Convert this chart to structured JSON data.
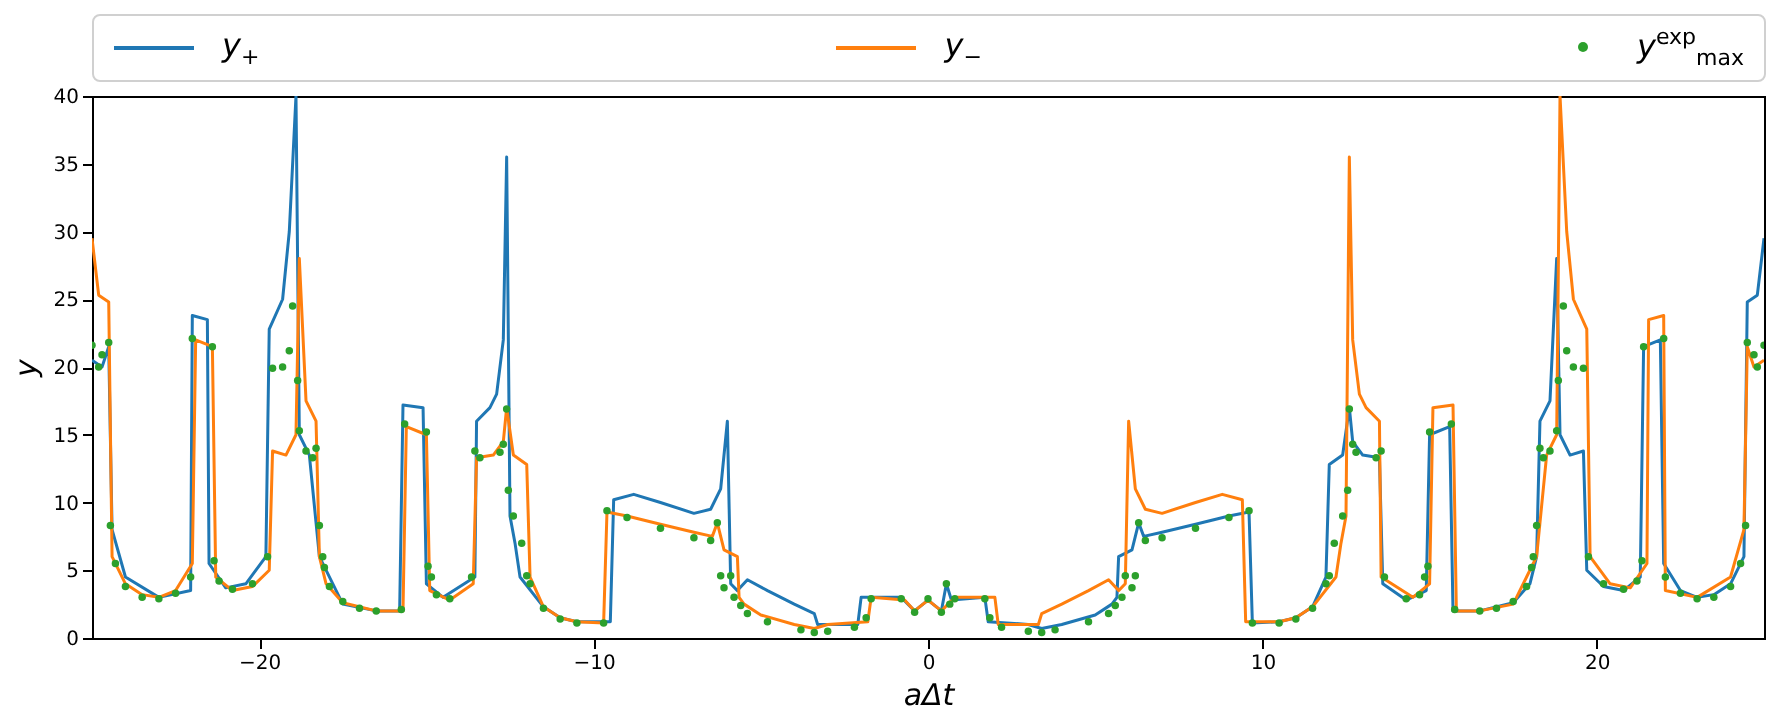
{
  "chart_data": {
    "type": "line",
    "xlabel": "aΔt",
    "ylabel": "y",
    "xlim": [
      -25,
      25
    ],
    "ylim": [
      0,
      40
    ],
    "xticks": [
      {
        "value": -20,
        "label": "−20"
      },
      {
        "value": -10,
        "label": "−10"
      },
      0,
      10,
      20
    ],
    "yticks": [
      0,
      5,
      10,
      15,
      20,
      25,
      30,
      35,
      40
    ],
    "grid": false,
    "legend": "top",
    "series": [
      {
        "name": "y$_{+}$",
        "type": "line",
        "color": "#1f77b4",
        "x": [
          -25,
          -24.7,
          -24.5,
          -24.4,
          -24,
          -23,
          -22.05,
          -22.0,
          -21.55,
          -21.5,
          -21,
          -20.4,
          -19.8,
          -19.7,
          -19.3,
          -19.1,
          -18.9,
          -18.8,
          -18.5,
          -18.2,
          -17.5,
          -16.5,
          -15.8,
          -15.7,
          -15.1,
          -15.0,
          -14.5,
          -13.55,
          -13.5,
          -13.1,
          -12.9,
          -12.7,
          -12.6,
          -12.5,
          -12.35,
          -12.2,
          -11.5,
          -11,
          -10.5,
          -9.5,
          -9.4,
          -8.8,
          -8,
          -7,
          -6.5,
          -6.2,
          -6.0,
          -5.9,
          -5.7,
          -5.4,
          -4.8,
          -4,
          -3.4,
          -3.3,
          -2.1,
          -2.0,
          -0.8,
          -0.4,
          0,
          0.4,
          0.55,
          0.7,
          1.7,
          1.8,
          3.0,
          3.4,
          4,
          5,
          5.5,
          5.65,
          5.7,
          6.1,
          6.3,
          6.45,
          7,
          8,
          9,
          9.6,
          9.7,
          10.5,
          11,
          11.5,
          11.9,
          12.0,
          12.4,
          12.6,
          12.7,
          13.0,
          13.5,
          13.6,
          14.3,
          14.9,
          15.0,
          15.6,
          15.7,
          16.5,
          17.5,
          18.0,
          18.2,
          18.3,
          18.6,
          18.8,
          18.9,
          19.2,
          19.6,
          19.7,
          20.2,
          20.8,
          21.3,
          21.4,
          21.9,
          22.0,
          22.5,
          23,
          23.5,
          24,
          24.4,
          24.5,
          24.8,
          25
        ],
        "values": [
          20.5,
          20.0,
          21.5,
          8,
          4.5,
          3.0,
          3.5,
          23.8,
          23.5,
          5.5,
          3.7,
          4,
          6,
          22.8,
          25,
          30,
          40,
          15,
          13.5,
          6.0,
          2.5,
          2.0,
          2.0,
          17.2,
          17.0,
          4.0,
          3.0,
          4.5,
          16,
          17,
          18,
          22,
          35.5,
          9,
          7,
          4.5,
          2.3,
          1.5,
          1.2,
          1.2,
          10.2,
          10.6,
          10.0,
          9.2,
          9.5,
          11,
          16,
          4.0,
          3.5,
          4.3,
          3.5,
          2.5,
          1.8,
          1.0,
          1.0,
          3.0,
          3.0,
          2.0,
          2.8,
          2.0,
          4.0,
          2.8,
          3.0,
          1.2,
          1.0,
          0.7,
          1.0,
          1.7,
          2.5,
          3.0,
          6.0,
          6.5,
          8.5,
          7.5,
          7.8,
          8.4,
          9.0,
          9.3,
          1.1,
          1.2,
          1.5,
          2.3,
          4.5,
          12.8,
          13.5,
          17,
          14.5,
          13.5,
          13.3,
          4.0,
          2.8,
          3.5,
          15.0,
          15.6,
          2.0,
          2.0,
          2.6,
          4.0,
          6.0,
          16,
          17.5,
          28,
          15,
          13.5,
          13.8,
          5,
          3.8,
          3.5,
          4.5,
          21.5,
          22.0,
          5.5,
          3.5,
          3.0,
          3.2,
          4.0,
          6.0,
          24.8,
          25.3,
          29.5
        ]
      },
      {
        "name": "y$_{−}$",
        "type": "line",
        "color": "#ff7f0e",
        "x": [
          -25,
          -24.8,
          -24.5,
          -24.4,
          -24,
          -23.5,
          -23,
          -22.5,
          -22.0,
          -21.9,
          -21.4,
          -21.3,
          -20.8,
          -20.2,
          -19.7,
          -19.6,
          -19.2,
          -18.9,
          -18.8,
          -18.6,
          -18.3,
          -18.2,
          -18.0,
          -17.5,
          -16.5,
          -15.7,
          -15.6,
          -15.0,
          -14.9,
          -14.3,
          -13.6,
          -13.5,
          -13.0,
          -12.7,
          -12.6,
          -12.4,
          -12.0,
          -11.9,
          -11.5,
          -11,
          -10.5,
          -9.7,
          -9.6,
          -9,
          -8,
          -7,
          -6.45,
          -6.3,
          -6.1,
          -5.7,
          -5.65,
          -5.5,
          -5,
          -4,
          -3.4,
          -3.0,
          -1.8,
          -1.7,
          -0.7,
          -0.4,
          0,
          0.4,
          0.8,
          2.0,
          2.1,
          3.3,
          3.4,
          4,
          4.8,
          5.4,
          5.7,
          5.9,
          6.0,
          6.2,
          6.5,
          7,
          8,
          8.8,
          9.4,
          9.5,
          10.5,
          11,
          11.5,
          12.2,
          12.35,
          12.5,
          12.6,
          12.7,
          12.9,
          13.1,
          13.5,
          13.55,
          14.5,
          15.0,
          15.1,
          15.7,
          15.8,
          16.5,
          17.5,
          18.2,
          18.5,
          18.8,
          18.9,
          19.1,
          19.3,
          19.7,
          19.8,
          20.4,
          21,
          21.5,
          21.55,
          22.0,
          22.05,
          23,
          24,
          24.4,
          24.5,
          24.7,
          25
        ],
        "values": [
          29.5,
          25.3,
          24.8,
          6.0,
          4.0,
          3.2,
          3.0,
          3.5,
          5.5,
          22.0,
          21.5,
          4.5,
          3.5,
          3.8,
          5,
          13.8,
          13.5,
          15,
          28,
          17.5,
          16,
          6.0,
          4.0,
          2.6,
          2.0,
          2.0,
          15.6,
          15.0,
          3.5,
          2.8,
          4.0,
          13.3,
          13.5,
          14.5,
          17,
          13.5,
          12.8,
          4.5,
          2.3,
          1.5,
          1.2,
          1.1,
          9.3,
          9.0,
          8.4,
          7.8,
          7.5,
          8.5,
          6.5,
          6.0,
          3.0,
          2.5,
          1.7,
          1.0,
          0.7,
          1.0,
          1.2,
          3.0,
          2.8,
          2.0,
          2.8,
          2.0,
          3.0,
          3.0,
          1.0,
          1.0,
          1.8,
          2.5,
          3.5,
          4.3,
          3.5,
          4.0,
          16,
          11,
          9.5,
          9.2,
          10.0,
          10.6,
          10.2,
          1.2,
          1.2,
          1.5,
          2.3,
          4.5,
          7,
          9,
          35.5,
          22,
          18,
          17,
          16,
          4.5,
          3.0,
          4.0,
          17.0,
          17.2,
          2.0,
          2.0,
          2.5,
          6.0,
          13.5,
          15,
          40,
          30,
          25,
          22.8,
          6,
          4,
          3.7,
          5.5,
          23.5,
          23.8,
          3.5,
          3.0,
          4.5,
          8,
          21.5,
          20.0,
          20.5
        ]
      },
      {
        "name": "y$^{exp}$$_{max}$",
        "type": "scatter",
        "color": "#2ca02c",
        "x": [
          -25,
          -24.8,
          -24.7,
          -24.5,
          -24.45,
          -24.3,
          -24,
          -23.5,
          -23,
          -22.5,
          -22.05,
          -22.0,
          -21.4,
          -21.35,
          -21.2,
          -20.8,
          -20.2,
          -19.75,
          -19.6,
          -19.3,
          -19.1,
          -19.0,
          -18.85,
          -18.8,
          -18.6,
          -18.4,
          -18.3,
          -18.2,
          -18.1,
          -18.05,
          -17.9,
          -17.5,
          -17.0,
          -16.5,
          -15.75,
          -15.65,
          -15.0,
          -14.95,
          -14.85,
          -14.7,
          -14.3,
          -13.65,
          -13.55,
          -13.4,
          -12.8,
          -12.7,
          -12.6,
          -12.55,
          -12.4,
          -12.15,
          -12.0,
          -11.9,
          -11.5,
          -11,
          -10.5,
          -9.7,
          -9.6,
          -9,
          -8,
          -7,
          -6.5,
          -6.3,
          -6.2,
          -6.1,
          -5.9,
          -5.8,
          -5.6,
          -5.4,
          -4.8,
          -3.8,
          -3.4,
          -3.0,
          -2.2,
          -1.85,
          -1.7,
          -0.8,
          -0.4,
          0,
          0.4,
          0.55,
          0.65,
          0.8,
          1.7,
          1.85,
          2.2,
          3.0,
          3.4,
          3.8,
          4.8,
          5.4,
          5.6,
          5.8,
          5.9,
          6.1,
          6.2,
          6.3,
          6.5,
          7,
          8,
          9,
          9.6,
          9.7,
          10.5,
          11,
          11.5,
          11.9,
          12.0,
          12.15,
          12.4,
          12.55,
          12.6,
          12.7,
          12.8,
          13.4,
          13.55,
          13.65,
          14.3,
          14.7,
          14.85,
          14.95,
          15.0,
          15.65,
          15.75,
          16.5,
          17.0,
          17.5,
          17.9,
          18.05,
          18.1,
          18.2,
          18.3,
          18.4,
          18.6,
          18.8,
          18.85,
          19.0,
          19.1,
          19.3,
          19.6,
          19.75,
          20.2,
          20.8,
          21.2,
          21.35,
          21.4,
          22.0,
          22.05,
          22.5,
          23,
          23.5,
          24,
          24.3,
          24.45,
          24.5,
          24.7,
          24.8,
          25
        ],
        "values": [
          21.6,
          20.0,
          20.9,
          21.8,
          8.3,
          5.5,
          3.8,
          3.0,
          2.9,
          3.3,
          4.5,
          22.1,
          21.5,
          5.7,
          4.2,
          3.6,
          4.0,
          6.0,
          19.9,
          20,
          21.2,
          24.5,
          19,
          15.3,
          13.8,
          13.3,
          14,
          8.3,
          6,
          5.2,
          3.8,
          2.7,
          2.2,
          2.0,
          2.1,
          15.8,
          15.2,
          5.3,
          4.5,
          3.2,
          2.9,
          4.5,
          13.8,
          13.3,
          13.7,
          14.3,
          16.9,
          10.9,
          9,
          7,
          4.6,
          4.0,
          2.2,
          1.4,
          1.1,
          1.1,
          9.4,
          8.9,
          8.1,
          7.4,
          7.2,
          8.5,
          4.6,
          3.7,
          4.6,
          3.0,
          2.4,
          1.8,
          1.2,
          0.6,
          0.4,
          0.5,
          0.8,
          1.5,
          2.9,
          2.9,
          1.9,
          2.9,
          1.9,
          4.0,
          2.5,
          2.9,
          2.9,
          1.5,
          0.8,
          0.5,
          0.4,
          0.6,
          1.2,
          1.8,
          2.4,
          3.0,
          4.6,
          3.7,
          4.6,
          8.5,
          7.2,
          7.4,
          8.1,
          8.9,
          9.4,
          1.1,
          1.1,
          1.4,
          2.2,
          4.0,
          4.6,
          7,
          9,
          10.9,
          16.9,
          14.3,
          13.7,
          13.3,
          13.8,
          4.5,
          2.9,
          3.2,
          4.5,
          5.3,
          15.2,
          15.8,
          2.1,
          2.0,
          2.2,
          2.7,
          3.8,
          5.2,
          6,
          8.3,
          14,
          13.3,
          13.8,
          15.3,
          19,
          24.5,
          21.2,
          20,
          19.9,
          6.0,
          4.0,
          3.6,
          4.2,
          5.7,
          21.5,
          22.1,
          4.5,
          3.3,
          2.9,
          3.0,
          3.8,
          5.5,
          8.3,
          21.8,
          20.9,
          20.0,
          21.6
        ]
      }
    ]
  }
}
